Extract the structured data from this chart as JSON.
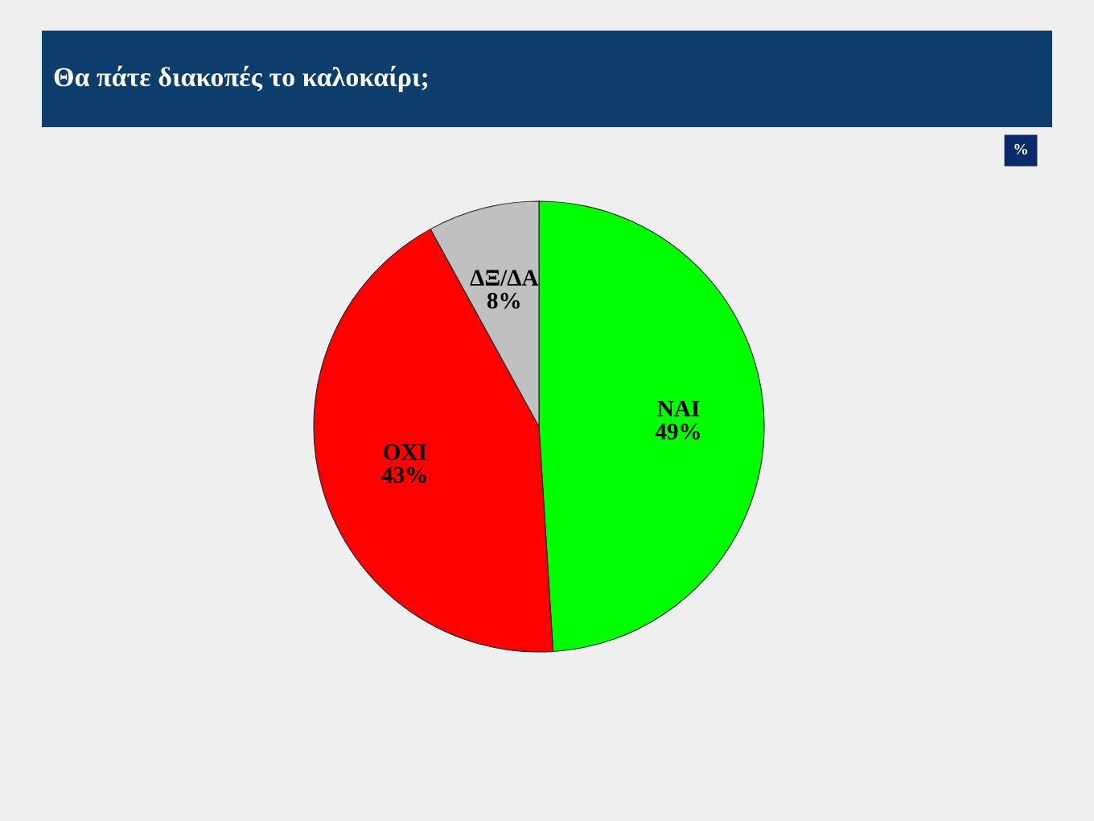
{
  "chart_data": {
    "type": "pie",
    "title": "Θα πάτε διακοπές το καλοκαίρι;",
    "categories": [
      "ΝΑΙ",
      "ΟΧΙ",
      "ΔΞ/ΔΑ"
    ],
    "values": [
      49,
      43,
      8
    ],
    "value_labels": [
      "49%",
      "43%",
      "8%"
    ],
    "colors": [
      "#00ff00",
      "#ff0000",
      "#c0c0c0"
    ],
    "annotations": [
      "%"
    ]
  }
}
